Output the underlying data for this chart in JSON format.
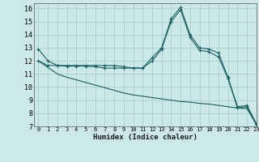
{
  "xlabel": "Humidex (Indice chaleur)",
  "background_color": "#cce8e8",
  "grid_color": "#aad4d4",
  "line_color": "#1a6060",
  "xlim": [
    -0.5,
    23
  ],
  "ylim": [
    7,
    16.4
  ],
  "yticks": [
    7,
    8,
    9,
    10,
    11,
    12,
    13,
    14,
    15,
    16
  ],
  "xticks": [
    0,
    1,
    2,
    3,
    4,
    5,
    6,
    7,
    8,
    9,
    10,
    11,
    12,
    13,
    14,
    15,
    16,
    17,
    18,
    19,
    20,
    21,
    22,
    23
  ],
  "line1_x": [
    0,
    1,
    2,
    3,
    4,
    5,
    6,
    7,
    8,
    9,
    10,
    11,
    12,
    13,
    14,
    15,
    16,
    17,
    18,
    19,
    20,
    21,
    22,
    23
  ],
  "line1_y": [
    12.9,
    12.0,
    11.65,
    11.65,
    11.65,
    11.65,
    11.65,
    11.65,
    11.65,
    11.55,
    11.45,
    11.45,
    12.25,
    13.0,
    15.2,
    16.1,
    14.0,
    13.0,
    12.9,
    12.6,
    10.75,
    8.5,
    8.6,
    7.2
  ],
  "line2_x": [
    0,
    1,
    2,
    3,
    4,
    5,
    6,
    7,
    8,
    9,
    10,
    11,
    12,
    13,
    14,
    15,
    16,
    17,
    18,
    19,
    20,
    21,
    22,
    23
  ],
  "line2_y": [
    12.0,
    11.65,
    11.65,
    11.6,
    11.6,
    11.6,
    11.55,
    11.45,
    11.45,
    11.45,
    11.45,
    11.45,
    12.0,
    12.9,
    15.0,
    15.9,
    13.8,
    12.8,
    12.7,
    12.3,
    10.65,
    8.4,
    8.5,
    7.1
  ],
  "line3_x": [
    0,
    1,
    2,
    3,
    4,
    5,
    6,
    7,
    8,
    9,
    10,
    11,
    12,
    13,
    14,
    15,
    16,
    17,
    18,
    19,
    20,
    21,
    22,
    23
  ],
  "line3_y": [
    12.0,
    11.5,
    11.0,
    10.75,
    10.55,
    10.35,
    10.15,
    9.95,
    9.75,
    9.55,
    9.4,
    9.3,
    9.2,
    9.1,
    9.0,
    8.9,
    8.85,
    8.75,
    8.7,
    8.6,
    8.5,
    8.4,
    8.35,
    7.15
  ]
}
